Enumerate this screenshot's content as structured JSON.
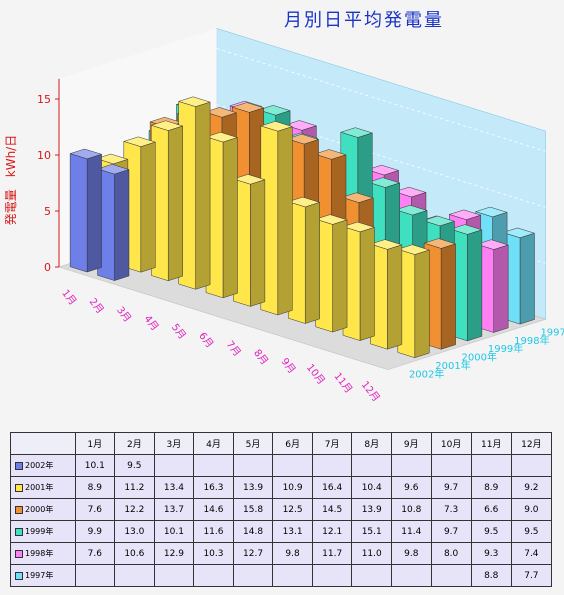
{
  "title": "月別日平均発電量",
  "colors": {
    "2002": "#6f7fe8",
    "2001": "#ffe64a",
    "2000": "#f09030",
    "1999": "#3fe0c0",
    "1998": "#ff7ff5",
    "1997": "#70e0f8",
    "month_label": "#e020c0",
    "year_label": "#20c8e8",
    "ylabel": "#d81818",
    "plane": "#bfe8f8"
  },
  "chart_data": {
    "type": "bar",
    "title": "月別日平均発電量",
    "ylabel": "発電量　kWh/日",
    "ylim": [
      0,
      15
    ],
    "yticks": [
      0,
      5,
      10,
      15
    ],
    "categories": [
      "1月",
      "2月",
      "3月",
      "4月",
      "5月",
      "6月",
      "7月",
      "8月",
      "9月",
      "10月",
      "11月",
      "12月"
    ],
    "series": [
      {
        "name": "1997年",
        "values": [
          null,
          null,
          null,
          null,
          null,
          null,
          null,
          null,
          null,
          null,
          8.8,
          7.7
        ]
      },
      {
        "name": "1998年",
        "values": [
          7.6,
          10.6,
          12.9,
          10.3,
          12.7,
          9.8,
          11.7,
          11.0,
          9.8,
          8.0,
          9.3,
          7.4
        ]
      },
      {
        "name": "1999年",
        "values": [
          9.9,
          13.0,
          10.1,
          11.6,
          14.8,
          13.1,
          12.1,
          15.1,
          11.4,
          9.7,
          9.5,
          9.5
        ]
      },
      {
        "name": "2000年",
        "values": [
          7.6,
          12.2,
          13.7,
          14.6,
          15.8,
          12.5,
          14.5,
          13.9,
          10.8,
          7.3,
          6.6,
          9.0
        ]
      },
      {
        "name": "2001年",
        "values": [
          8.9,
          11.2,
          13.4,
          16.3,
          13.9,
          10.9,
          16.4,
          10.4,
          9.6,
          9.7,
          8.9,
          9.2
        ]
      },
      {
        "name": "2002年",
        "values": [
          10.1,
          9.5,
          null,
          null,
          null,
          null,
          null,
          null,
          null,
          null,
          null,
          null
        ]
      }
    ]
  },
  "table": {
    "headers": [
      "",
      "1月",
      "2月",
      "3月",
      "4月",
      "5月",
      "6月",
      "7月",
      "8月",
      "9月",
      "10月",
      "11月",
      "12月"
    ],
    "rows": [
      {
        "label": "2002年",
        "key": "2002",
        "values": [
          "10.1",
          "9.5",
          "",
          "",
          "",
          "",
          "",
          "",
          "",
          "",
          "",
          ""
        ]
      },
      {
        "label": "2001年",
        "key": "2001",
        "values": [
          "8.9",
          "11.2",
          "13.4",
          "16.3",
          "13.9",
          "10.9",
          "16.4",
          "10.4",
          "9.6",
          "9.7",
          "8.9",
          "9.2"
        ]
      },
      {
        "label": "2000年",
        "key": "2000",
        "values": [
          "7.6",
          "12.2",
          "13.7",
          "14.6",
          "15.8",
          "12.5",
          "14.5",
          "13.9",
          "10.8",
          "7.3",
          "6.6",
          "9.0"
        ]
      },
      {
        "label": "1999年",
        "key": "1999",
        "values": [
          "9.9",
          "13.0",
          "10.1",
          "11.6",
          "14.8",
          "13.1",
          "12.1",
          "15.1",
          "11.4",
          "9.7",
          "9.5",
          "9.5"
        ]
      },
      {
        "label": "1998年",
        "key": "1998",
        "values": [
          "7.6",
          "10.6",
          "12.9",
          "10.3",
          "12.7",
          "9.8",
          "11.7",
          "11.0",
          "9.8",
          "8.0",
          "9.3",
          "7.4"
        ]
      },
      {
        "label": "1997年",
        "key": "1997",
        "values": [
          "",
          "",
          "",
          "",
          "",
          "",
          "",
          "",
          "",
          "",
          "8.8",
          "7.7"
        ]
      }
    ]
  }
}
